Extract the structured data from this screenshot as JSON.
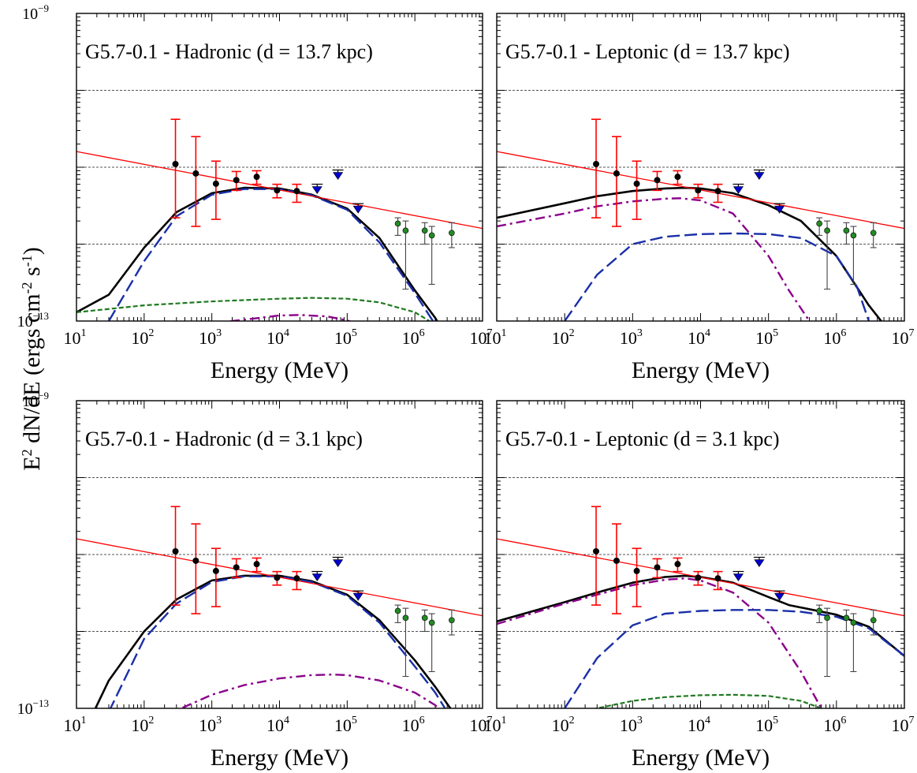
{
  "figure": {
    "ylabel_main": "E",
    "ylabel_sup": "2",
    "ylabel_rest": " dN/dE (ergs cm",
    "ylabel_sup2": "-2",
    "ylabel_mid": " s",
    "ylabel_sup3": "-1",
    "ylabel_end": ")",
    "xlabel": "Energy (MeV)",
    "x_ticks": [
      {
        "base": "10",
        "exp": "1"
      },
      {
        "base": "10",
        "exp": "2"
      },
      {
        "base": "10",
        "exp": "3"
      },
      {
        "base": "10",
        "exp": "4"
      },
      {
        "base": "10",
        "exp": "5"
      },
      {
        "base": "10",
        "exp": "6"
      },
      {
        "base": "10",
        "exp": "7"
      }
    ],
    "y_ticks": [
      {
        "base": "10",
        "exp": "−9"
      },
      {
        "base": "10",
        "exp": "−13"
      }
    ]
  },
  "colors": {
    "total": "#000000",
    "pi0": "#1a2fa8",
    "bremsstrahlung": "#8b008b",
    "ic": "#1f7a1f",
    "powerlaw": "#ff0000",
    "fermi_points": "#000000",
    "fermi_errors": "#ff0000",
    "upper_limits": "#0000cc",
    "hess_points": "#228b22",
    "grid": "#555555"
  },
  "chart_data": [
    {
      "type": "line",
      "title": "G5.7-0.1 - Hadronic (d = 13.7 kpc)",
      "x_scale": "log",
      "y_scale": "log",
      "xlim": [
        10,
        10000000
      ],
      "ylim": [
        1e-13,
        1e-09
      ],
      "xlabel": "Energy (MeV)",
      "ylabel": "E2 dN/dE (ergs cm-2 s-1)",
      "grid": "horizontal dashed",
      "series": [
        {
          "style": "solid-thick",
          "color_key": "total",
          "x": [
            10,
            30,
            100,
            300,
            1000,
            3000,
            10000,
            30000,
            100000,
            300000,
            1000000,
            2000000,
            3000000
          ],
          "y": [
            1.3e-13,
            2.2e-13,
            9e-13,
            2.6e-12,
            4.6e-12,
            5.4e-12,
            5.3e-12,
            4.4e-12,
            2.9e-12,
            1.2e-12,
            2.5e-13,
            1.1e-13,
            6e-14
          ]
        },
        {
          "style": "dashed-long",
          "color_key": "pi0",
          "x": [
            30,
            100,
            300,
            1000,
            3000,
            10000,
            30000,
            100000,
            300000,
            1000000,
            2000000
          ],
          "y": [
            1e-13,
            6e-13,
            2.3e-12,
            4.4e-12,
            5.2e-12,
            5.2e-12,
            4.3e-12,
            2.8e-12,
            1.05e-12,
            2.3e-13,
            9e-14
          ]
        },
        {
          "style": "dashed-short",
          "color_key": "ic",
          "x": [
            10,
            100,
            1000,
            10000,
            30000,
            100000,
            300000,
            1000000,
            2000000
          ],
          "y": [
            1.3e-13,
            1.6e-13,
            1.8e-13,
            1.95e-13,
            2e-13,
            1.95e-13,
            1.75e-13,
            1.3e-13,
            9e-14
          ]
        },
        {
          "style": "dashdot",
          "color_key": "bremsstrahlung",
          "x": [
            500,
            2000,
            10000,
            20000,
            50000,
            100000,
            150000
          ],
          "y": [
            8e-14,
            1e-13,
            1.18e-13,
            1.2e-13,
            1.15e-13,
            1.02e-13,
            9e-14
          ]
        },
        {
          "style": "solid-thin",
          "color_key": "powerlaw",
          "x": [
            10,
            10000000
          ],
          "y": [
            1.6e-11,
            1.6e-12
          ]
        }
      ],
      "fermi_points": [
        {
          "x": 290,
          "y": 1.1e-11,
          "lo": 2.2e-12,
          "hi": 4.2e-11
        },
        {
          "x": 580,
          "y": 8.3e-12,
          "lo": 1.7e-12,
          "hi": 2.5e-11
        },
        {
          "x": 1150,
          "y": 6.1e-12,
          "lo": 2.1e-12,
          "hi": 1.2e-11
        },
        {
          "x": 2300,
          "y": 6.8e-12,
          "lo": 5e-12,
          "hi": 8.8e-12
        },
        {
          "x": 4600,
          "y": 7.5e-12,
          "lo": 6e-12,
          "hi": 9e-12
        },
        {
          "x": 9200,
          "y": 5e-12,
          "lo": 4e-12,
          "hi": 6e-12
        },
        {
          "x": 18000,
          "y": 4.9e-12,
          "lo": 3.5e-12,
          "hi": 6e-12
        }
      ],
      "upper_limits": [
        {
          "x": 36000,
          "y": 5.1e-12
        },
        {
          "x": 73000,
          "y": 7.8e-12
        },
        {
          "x": 145000,
          "y": 2.85e-12
        }
      ],
      "hess_points": [
        {
          "x": 560000,
          "y": 1.85e-12,
          "lo": 1.3e-12,
          "hi": 2.2e-12
        },
        {
          "x": 730000,
          "y": 1.5e-12,
          "lo": 2.6e-13,
          "hi": 2e-12
        },
        {
          "x": 1400000,
          "y": 1.5e-12,
          "lo": 1e-12,
          "hi": 1.9e-12
        },
        {
          "x": 1780000,
          "y": 1.3e-12,
          "lo": 3e-13,
          "hi": 1.7e-12
        },
        {
          "x": 3500000,
          "y": 1.4e-12,
          "lo": 9e-13,
          "hi": 1.9e-12
        }
      ]
    },
    {
      "type": "line",
      "title": "G5.7-0.1 - Leptonic (d = 13.7 kpc)",
      "x_scale": "log",
      "y_scale": "log",
      "xlim": [
        10,
        10000000
      ],
      "ylim": [
        1e-13,
        1e-09
      ],
      "xlabel": "Energy (MeV)",
      "ylabel": "E2 dN/dE (ergs cm-2 s-1)",
      "grid": "horizontal dashed",
      "series": [
        {
          "style": "solid-thick",
          "color_key": "total",
          "x": [
            10,
            100,
            300,
            1000,
            3000,
            6000,
            10000,
            30000,
            100000,
            300000,
            1000000,
            3000000,
            5000000
          ],
          "y": [
            2.2e-12,
            3.4e-12,
            4.2e-12,
            4.9e-12,
            5.3e-12,
            5.4e-12,
            5.3e-12,
            4.6e-12,
            3.2e-12,
            2e-12,
            7e-13,
            1.6e-13,
            9e-14
          ]
        },
        {
          "style": "dashdot",
          "color_key": "bremsstrahlung",
          "x": [
            10,
            100,
            300,
            1000,
            3000,
            5000,
            10000,
            30000,
            100000,
            200000,
            400000
          ],
          "y": [
            1.7e-12,
            2.5e-12,
            3.1e-12,
            3.6e-12,
            3.9e-12,
            3.95e-12,
            3.7e-12,
            2.5e-12,
            7e-13,
            2.5e-13,
            1e-13
          ]
        },
        {
          "style": "dashed-long",
          "color_key": "pi0",
          "x": [
            100,
            300,
            1000,
            3000,
            10000,
            30000,
            100000,
            300000,
            1000000,
            2000000,
            3000000
          ],
          "y": [
            1e-13,
            4e-13,
            1e-12,
            1.25e-12,
            1.35e-12,
            1.38e-12,
            1.35e-12,
            1.2e-12,
            7e-13,
            2.8e-13,
            1e-13
          ]
        },
        {
          "style": "solid-thin",
          "color_key": "powerlaw",
          "x": [
            10,
            10000000
          ],
          "y": [
            1.6e-11,
            1.6e-12
          ]
        }
      ],
      "fermi_points": [
        {
          "x": 290,
          "y": 1.1e-11,
          "lo": 2.2e-12,
          "hi": 4.2e-11
        },
        {
          "x": 580,
          "y": 8.3e-12,
          "lo": 1.7e-12,
          "hi": 2.5e-11
        },
        {
          "x": 1150,
          "y": 6.1e-12,
          "lo": 2.1e-12,
          "hi": 1.2e-11
        },
        {
          "x": 2300,
          "y": 6.8e-12,
          "lo": 5e-12,
          "hi": 8.8e-12
        },
        {
          "x": 4600,
          "y": 7.5e-12,
          "lo": 6e-12,
          "hi": 9e-12
        },
        {
          "x": 9200,
          "y": 5e-12,
          "lo": 4e-12,
          "hi": 6e-12
        },
        {
          "x": 18000,
          "y": 4.9e-12,
          "lo": 3.5e-12,
          "hi": 6e-12
        }
      ],
      "upper_limits": [
        {
          "x": 36000,
          "y": 5.1e-12
        },
        {
          "x": 73000,
          "y": 7.8e-12
        },
        {
          "x": 145000,
          "y": 2.85e-12
        }
      ],
      "hess_points": [
        {
          "x": 560000,
          "y": 1.85e-12,
          "lo": 1.3e-12,
          "hi": 2.2e-12
        },
        {
          "x": 730000,
          "y": 1.5e-12,
          "lo": 2.6e-13,
          "hi": 2e-12
        },
        {
          "x": 1400000,
          "y": 1.5e-12,
          "lo": 1e-12,
          "hi": 1.9e-12
        },
        {
          "x": 1780000,
          "y": 1.3e-12,
          "lo": 3e-13,
          "hi": 1.7e-12
        },
        {
          "x": 3500000,
          "y": 1.4e-12,
          "lo": 9e-13,
          "hi": 1.9e-12
        }
      ]
    },
    {
      "type": "line",
      "title": "G5.7-0.1 - Hadronic (d = 3.1 kpc)",
      "x_scale": "log",
      "y_scale": "log",
      "xlim": [
        10,
        10000000
      ],
      "ylim": [
        1e-13,
        1e-09
      ],
      "xlabel": "Energy (MeV)",
      "ylabel": "E2 dN/dE (ergs cm-2 s-1)",
      "grid": "horizontal dashed",
      "series": [
        {
          "style": "solid-thick",
          "color_key": "total",
          "x": [
            18,
            30,
            100,
            300,
            1000,
            3000,
            10000,
            30000,
            100000,
            300000,
            1000000,
            2000000,
            4000000
          ],
          "y": [
            9e-14,
            2.3e-13,
            1e-12,
            2.6e-12,
            4.6e-12,
            5.3e-12,
            5.3e-12,
            4.5e-12,
            3e-12,
            1.4e-12,
            4.2e-13,
            1.9e-13,
            8e-14
          ]
        },
        {
          "style": "dashed-long",
          "color_key": "pi0",
          "x": [
            30,
            100,
            300,
            1000,
            3000,
            10000,
            30000,
            100000,
            300000,
            1000000,
            2000000,
            3000000
          ],
          "y": [
            9e-14,
            8e-13,
            2.3e-12,
            4.4e-12,
            5.2e-12,
            5.2e-12,
            4.4e-12,
            2.9e-12,
            1.3e-12,
            3.5e-13,
            1.6e-13,
            9e-14
          ]
        },
        {
          "style": "dashdot",
          "color_key": "bremsstrahlung",
          "x": [
            200,
            1000,
            3000,
            10000,
            30000,
            60000,
            100000,
            300000,
            1000000,
            2000000,
            3000000
          ],
          "y": [
            8e-14,
            1.5e-13,
            2e-13,
            2.45e-13,
            2.7e-13,
            2.75e-13,
            2.7e-13,
            2.3e-13,
            1.6e-13,
            1.1e-13,
            8e-14
          ]
        },
        {
          "style": "solid-thin",
          "color_key": "powerlaw",
          "x": [
            10,
            10000000
          ],
          "y": [
            1.6e-11,
            1.6e-12
          ]
        }
      ],
      "fermi_points": [
        {
          "x": 290,
          "y": 1.1e-11,
          "lo": 2.2e-12,
          "hi": 4.2e-11
        },
        {
          "x": 580,
          "y": 8.3e-12,
          "lo": 1.7e-12,
          "hi": 2.5e-11
        },
        {
          "x": 1150,
          "y": 6.1e-12,
          "lo": 2.1e-12,
          "hi": 1.2e-11
        },
        {
          "x": 2300,
          "y": 6.8e-12,
          "lo": 5e-12,
          "hi": 8.8e-12
        },
        {
          "x": 4600,
          "y": 7.5e-12,
          "lo": 6e-12,
          "hi": 9e-12
        },
        {
          "x": 9200,
          "y": 5e-12,
          "lo": 4e-12,
          "hi": 6e-12
        },
        {
          "x": 18000,
          "y": 4.9e-12,
          "lo": 3.5e-12,
          "hi": 6e-12
        }
      ],
      "upper_limits": [
        {
          "x": 36000,
          "y": 5.1e-12
        },
        {
          "x": 73000,
          "y": 7.8e-12
        },
        {
          "x": 145000,
          "y": 2.85e-12
        }
      ],
      "hess_points": [
        {
          "x": 560000,
          "y": 1.85e-12,
          "lo": 1.3e-12,
          "hi": 2.2e-12
        },
        {
          "x": 730000,
          "y": 1.5e-12,
          "lo": 2.6e-13,
          "hi": 2e-12
        },
        {
          "x": 1400000,
          "y": 1.5e-12,
          "lo": 1e-12,
          "hi": 1.9e-12
        },
        {
          "x": 1780000,
          "y": 1.3e-12,
          "lo": 3e-13,
          "hi": 1.7e-12
        },
        {
          "x": 3500000,
          "y": 1.4e-12,
          "lo": 9e-13,
          "hi": 1.9e-12
        }
      ]
    },
    {
      "type": "line",
      "title": "G5.7-0.1 - Leptonic (d = 3.1 kpc)",
      "x_scale": "log",
      "y_scale": "log",
      "xlim": [
        10,
        10000000
      ],
      "ylim": [
        1e-13,
        1e-09
      ],
      "xlabel": "Energy (MeV)",
      "ylabel": "E2 dN/dE (ergs cm-2 s-1)",
      "grid": "horizontal dashed",
      "series": [
        {
          "style": "solid-thick",
          "color_key": "total",
          "x": [
            10,
            100,
            300,
            1000,
            3000,
            6000,
            10000,
            30000,
            100000,
            200000,
            1000000,
            3000000,
            10000000
          ],
          "y": [
            1.35e-12,
            2.4e-12,
            3.2e-12,
            4.3e-12,
            5.1e-12,
            5.3e-12,
            5.1e-12,
            4.3e-12,
            2.8e-12,
            2.2e-12,
            1.65e-12,
            1.15e-12,
            4.8e-13
          ]
        },
        {
          "style": "dashdot",
          "color_key": "bremsstrahlung",
          "x": [
            10,
            100,
            300,
            1000,
            3000,
            6000,
            10000,
            30000,
            100000,
            300000,
            600000
          ],
          "y": [
            1.25e-12,
            2.3e-12,
            3e-12,
            4e-12,
            4.7e-12,
            4.9e-12,
            4.6e-12,
            3.2e-12,
            1.3e-12,
            3e-13,
            1e-13
          ]
        },
        {
          "style": "dashed-long",
          "color_key": "pi0",
          "x": [
            100,
            300,
            1000,
            3000,
            10000,
            30000,
            100000,
            300000,
            1000000,
            3000000,
            10000000
          ],
          "y": [
            1e-13,
            4.5e-13,
            1.2e-12,
            1.7e-12,
            1.85e-12,
            1.9e-12,
            1.9e-12,
            1.8e-12,
            1.55e-12,
            1.1e-12,
            4.8e-13
          ]
        },
        {
          "style": "dashed-short",
          "color_key": "ic",
          "x": [
            100,
            300,
            1000,
            3000,
            10000,
            30000,
            100000,
            300000,
            600000
          ],
          "y": [
            8e-14,
            1e-13,
            1.25e-13,
            1.4e-13,
            1.48e-13,
            1.5e-13,
            1.45e-13,
            1.25e-13,
            1e-13
          ]
        },
        {
          "style": "solid-thin",
          "color_key": "powerlaw",
          "x": [
            10,
            10000000
          ],
          "y": [
            1.6e-11,
            1.6e-12
          ]
        }
      ],
      "fermi_points": [
        {
          "x": 290,
          "y": 1.1e-11,
          "lo": 2.2e-12,
          "hi": 4.2e-11
        },
        {
          "x": 580,
          "y": 8.3e-12,
          "lo": 1.7e-12,
          "hi": 2.5e-11
        },
        {
          "x": 1150,
          "y": 6.1e-12,
          "lo": 2.1e-12,
          "hi": 1.2e-11
        },
        {
          "x": 2300,
          "y": 6.8e-12,
          "lo": 5e-12,
          "hi": 8.8e-12
        },
        {
          "x": 4600,
          "y": 7.5e-12,
          "lo": 6e-12,
          "hi": 9e-12
        },
        {
          "x": 9200,
          "y": 5e-12,
          "lo": 4e-12,
          "hi": 6e-12
        },
        {
          "x": 18000,
          "y": 4.9e-12,
          "lo": 3.5e-12,
          "hi": 6e-12
        }
      ],
      "upper_limits": [
        {
          "x": 36000,
          "y": 5.1e-12
        },
        {
          "x": 73000,
          "y": 7.8e-12
        },
        {
          "x": 145000,
          "y": 2.85e-12
        }
      ],
      "hess_points": [
        {
          "x": 560000,
          "y": 1.85e-12,
          "lo": 1.3e-12,
          "hi": 2.2e-12
        },
        {
          "x": 730000,
          "y": 1.5e-12,
          "lo": 2.6e-13,
          "hi": 2e-12
        },
        {
          "x": 1400000,
          "y": 1.5e-12,
          "lo": 1e-12,
          "hi": 1.9e-12
        },
        {
          "x": 1780000,
          "y": 1.3e-12,
          "lo": 3e-13,
          "hi": 1.7e-12
        },
        {
          "x": 3500000,
          "y": 1.4e-12,
          "lo": 9e-13,
          "hi": 1.9e-12
        }
      ]
    }
  ]
}
